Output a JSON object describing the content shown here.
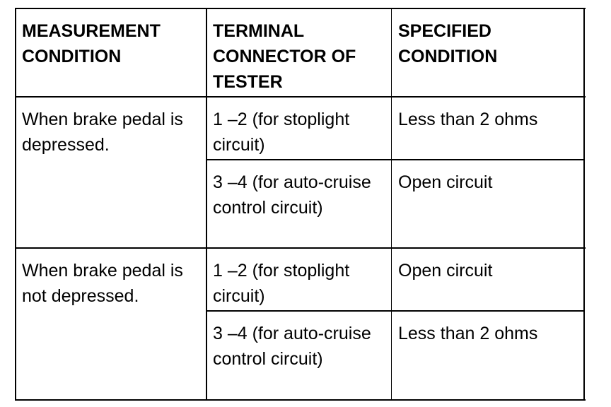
{
  "headers": [
    "MEASUREMENT CONDITION",
    "TERMINAL CONNECTOR OF TESTER",
    "SPECIFIED CONDITION"
  ],
  "groups": [
    {
      "condition": "When brake pedal is depressed.",
      "rows": [
        {
          "terminal": "1 –2 (for stoplight circuit)",
          "specified": "Less than 2 ohms"
        },
        {
          "terminal": "3 –4 (for auto-cruise control circuit)",
          "specified": "Open circuit"
        }
      ]
    },
    {
      "condition": "When brake pedal is not depressed.",
      "rows": [
        {
          "terminal": "1 –2 (for stoplight circuit)",
          "specified": "Open circuit"
        },
        {
          "terminal": "3 –4 (for auto-cruise control circuit)",
          "specified": "Less than 2 ohms"
        }
      ]
    }
  ]
}
